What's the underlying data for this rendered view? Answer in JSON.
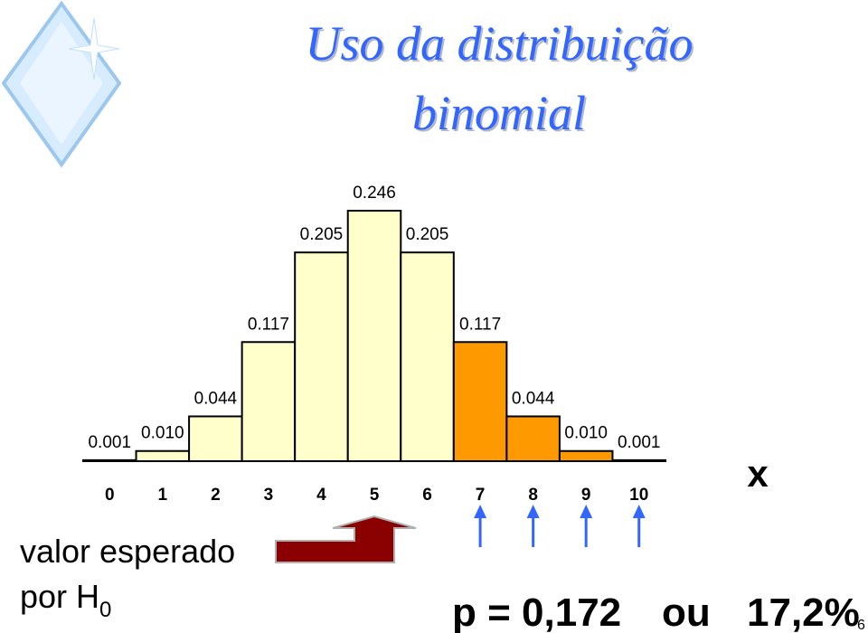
{
  "chart_data": {
    "type": "bar",
    "title": "Uso da distribuição binomial",
    "categories": [
      "0",
      "1",
      "2",
      "3",
      "4",
      "5",
      "6",
      "7",
      "8",
      "9",
      "10"
    ],
    "values": [
      0.001,
      0.01,
      0.044,
      0.117,
      0.205,
      0.246,
      0.205,
      0.117,
      0.044,
      0.01,
      0.001
    ],
    "value_labels": [
      "0.001",
      "0.010",
      "0.044",
      "0.117",
      "0.205",
      "0.246",
      "0.205",
      "0.117",
      "0.044",
      "0.010",
      "0.001"
    ],
    "colors": [
      "#ffffcc",
      "#ffffcc",
      "#ffffcc",
      "#ffffcc",
      "#ffffcc",
      "#ffffcc",
      "#ffffcc",
      "#ff9900",
      "#ff9900",
      "#ff9900",
      "#ff9900"
    ],
    "x_label": "x"
  },
  "annotations": {
    "expected_line1": "valor esperado",
    "expected_line2": "por H",
    "expected_sub": "0",
    "p_value": "p = 0,172",
    "or": "ou",
    "percent": "17,2%",
    "slide_number": "6"
  }
}
